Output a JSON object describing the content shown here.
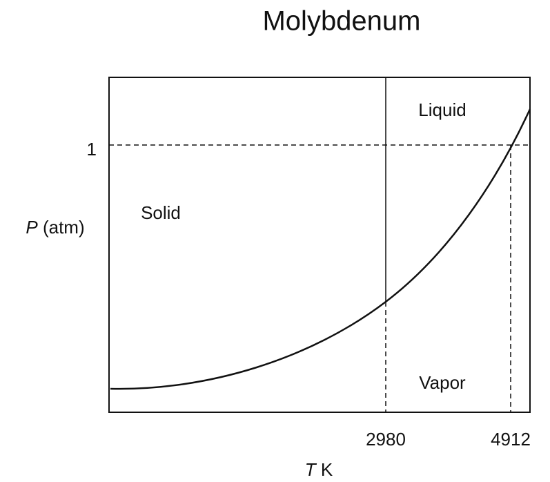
{
  "title": "Molybdenum",
  "y_axis": {
    "symbol": "P",
    "unit": "(atm)",
    "tick": "1"
  },
  "x_axis": {
    "symbol": "T",
    "unit": "K",
    "ticks": [
      "2980",
      "4912"
    ]
  },
  "regions": {
    "solid": "Solid",
    "liquid": "Liquid",
    "vapor": "Vapor"
  }
}
